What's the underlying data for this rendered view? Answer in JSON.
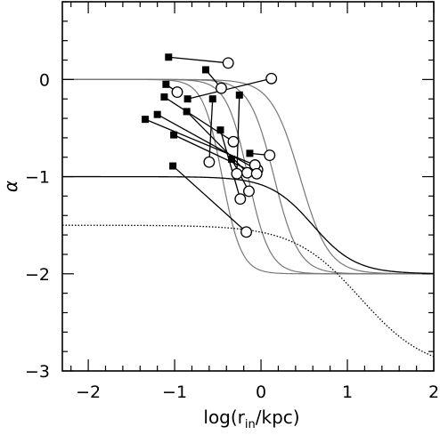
{
  "chart_data": {
    "type": "line",
    "title": "",
    "xlabel": "log(r_in/kpc)",
    "xlabel_parts": {
      "main": "log(r",
      "sub": "in",
      "rest": "/kpc)"
    },
    "ylabel": "α",
    "xlim": [
      -2.3,
      2.0
    ],
    "ylim": [
      -3.0,
      0.8
    ],
    "x_ticks": [
      -2,
      -1,
      0,
      1,
      2
    ],
    "x_tick_labels": [
      "−2",
      "−1",
      "0",
      "1",
      "2"
    ],
    "y_ticks": [
      -3,
      -2,
      -1,
      0
    ],
    "y_tick_labels": [
      "−3",
      "−2",
      "−1",
      "0"
    ],
    "x_minor_step": 0.2,
    "y_minor_step": 0.2,
    "grid": false,
    "legend": "none",
    "curves": [
      {
        "style": "grey",
        "a0": 0,
        "a1": -2,
        "x0": -0.45,
        "k": 9,
        "color": "#777777"
      },
      {
        "style": "grey",
        "a0": 0,
        "a1": -2,
        "x0": -0.15,
        "k": 8,
        "color": "#777777"
      },
      {
        "style": "grey",
        "a0": 0,
        "a1": -2,
        "x0": 0.15,
        "k": 7,
        "color": "#777777"
      },
      {
        "style": "grey",
        "a0": 0,
        "a1": -2,
        "x0": 0.45,
        "k": 6,
        "color": "#777777"
      },
      {
        "style": "solid",
        "a0": -1,
        "a1": -2,
        "x0": 0.6,
        "k": 4,
        "color": "#000000"
      },
      {
        "style": "dotted",
        "a0": -1.5,
        "a1": -3,
        "x0": 1.15,
        "k": 2.6,
        "color": "#000000"
      }
    ],
    "pairs": [
      {
        "square": [
          -1.07,
          0.23
        ],
        "circle": [
          -0.38,
          0.17
        ]
      },
      {
        "square": [
          -0.64,
          0.1
        ],
        "circle": [
          -0.46,
          -0.09
        ]
      },
      {
        "square": [
          -1.1,
          -0.05
        ],
        "circle": [
          -0.97,
          -0.13
        ]
      },
      {
        "square": [
          -0.85,
          -0.2
        ],
        "circle": [
          0.12,
          0.01
        ]
      },
      {
        "square": [
          -0.56,
          -0.2
        ],
        "circle": [
          -0.6,
          -0.85
        ]
      },
      {
        "square": [
          -0.25,
          -0.16
        ],
        "circle": [
          -0.28,
          -0.97
        ]
      },
      {
        "square": [
          -1.12,
          -0.18
        ],
        "circle": [
          -0.32,
          -0.64
        ]
      },
      {
        "square": [
          -1.2,
          -0.36
        ],
        "circle": [
          -0.04,
          -0.93
        ]
      },
      {
        "square": [
          -1.34,
          -0.41
        ],
        "circle": [
          -0.07,
          -0.88
        ]
      },
      {
        "square": [
          -0.86,
          -0.33
        ],
        "circle": [
          -0.16,
          -0.96
        ]
      },
      {
        "square": [
          -0.47,
          -0.52
        ],
        "circle": [
          -0.24,
          -1.23
        ]
      },
      {
        "square": [
          -1.01,
          -0.57
        ],
        "circle": [
          -0.05,
          -0.97
        ]
      },
      {
        "square": [
          -0.34,
          -0.82
        ],
        "circle": [
          -0.14,
          -1.15
        ]
      },
      {
        "square": [
          -0.13,
          -0.76
        ],
        "circle": [
          0.1,
          -0.78
        ]
      },
      {
        "square": [
          -1.02,
          -0.89
        ],
        "circle": [
          -0.17,
          -1.57
        ]
      }
    ]
  }
}
